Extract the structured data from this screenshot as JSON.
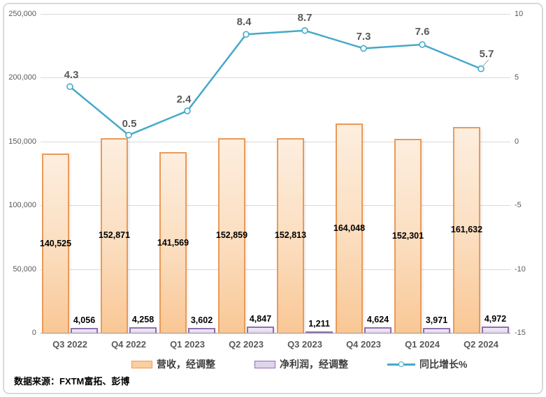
{
  "chart_data": {
    "type": "combo",
    "categories": [
      "Q3 2022",
      "Q4 2022",
      "Q1 2023",
      "Q2 2023",
      "Q3 2023",
      "Q4 2023",
      "Q1 2024",
      "Q2 2024"
    ],
    "series": [
      {
        "name": "营收，经调整",
        "type": "bar",
        "axis": "left",
        "values": [
          140525,
          152871,
          141569,
          152859,
          152813,
          164048,
          152301,
          161632
        ],
        "labels": [
          "140,525",
          "152,871",
          "141,569",
          "152,859",
          "152,813",
          "164,048",
          "152,301",
          "161,632"
        ],
        "fill": "#FBD5AE",
        "border": "#EA9A57"
      },
      {
        "name": "净利润，经调整",
        "type": "bar",
        "axis": "left",
        "values": [
          4056,
          4258,
          3602,
          4847,
          1211,
          4624,
          3971,
          4972
        ],
        "labels": [
          "4,056",
          "4,258",
          "3,602",
          "4,847",
          "1,211",
          "4,624",
          "3,971",
          "4,972"
        ],
        "fill": "#DFD4EC",
        "border": "#8F6FB0"
      },
      {
        "name": "同比增长%",
        "type": "line",
        "axis": "right",
        "values": [
          4.3,
          0.5,
          2.4,
          8.4,
          8.7,
          7.3,
          7.6,
          5.7
        ],
        "labels": [
          "4.3",
          "0.5",
          "2.4",
          "8.4",
          "8.7",
          "7.3",
          "7.6",
          "5.7"
        ],
        "color": "#45A9C9"
      }
    ],
    "left_axis": {
      "min": 0,
      "max": 250000,
      "step": 50000,
      "ticks": [
        "250,000",
        "200,000",
        "150,000",
        "100,000",
        "50,000",
        "0"
      ]
    },
    "right_axis": {
      "min": -15,
      "max": 10,
      "step": 5,
      "ticks": [
        "10",
        "5",
        "0",
        "-5",
        "-10",
        "-15"
      ]
    },
    "grid": true,
    "legend_position": "bottom"
  },
  "footer": {
    "source": "数据来源：FXTM富拓、彭博"
  },
  "colors": {
    "background": "#FFFFFF",
    "frame_border": "#D9D9D9",
    "gridline": "#D9D9D9",
    "axis_line": "#A6A6A6",
    "tick_text": "#595959",
    "x_label_text": "#595959",
    "bar_label_text": "#000000",
    "line_label_text": "#595959",
    "legend_text": "#3F3F3F",
    "revenue_fill": "#FBD5AE",
    "revenue_border": "#EA9A57",
    "profit_fill": "#DFD4EC",
    "profit_border": "#8F6FB0",
    "growth_line": "#45A9C9"
  }
}
